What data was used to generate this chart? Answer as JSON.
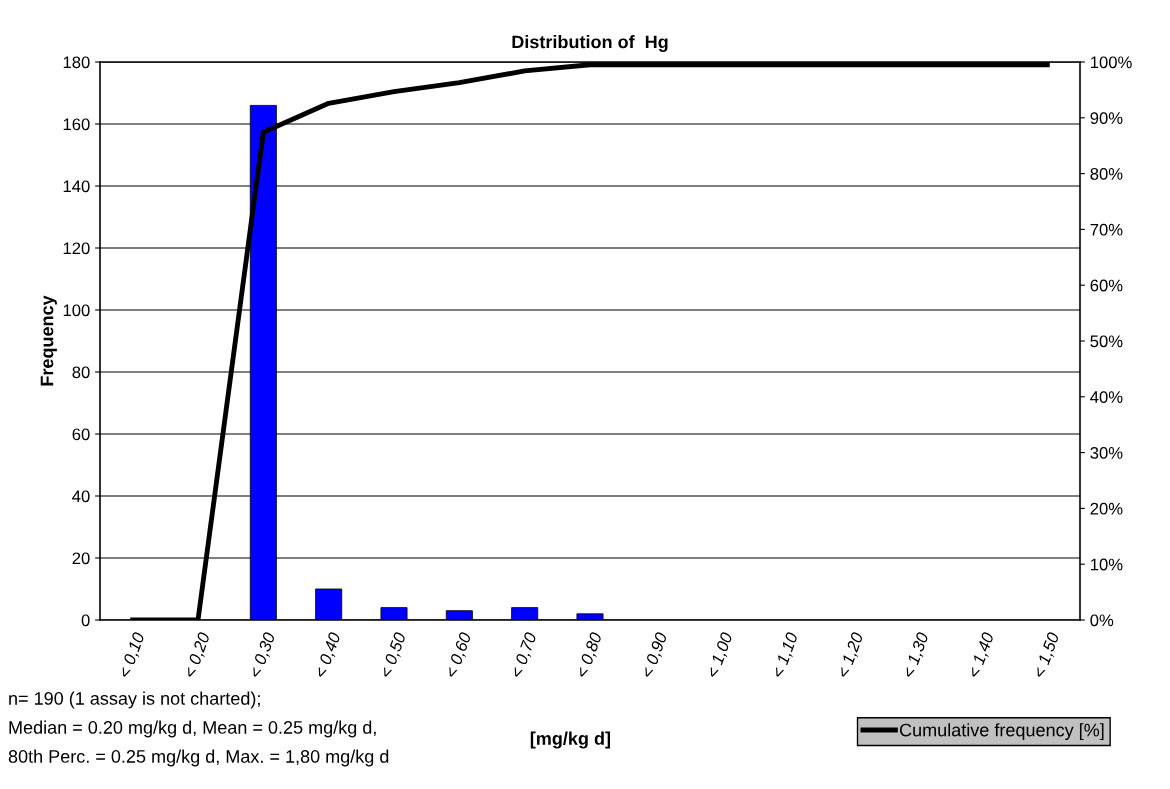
{
  "chart_data": {
    "type": "bar",
    "title": "Distribution of  Hg",
    "xlabel": "[mg/kg d]",
    "ylabel": "Frequency",
    "categories": [
      "< 0,10",
      "< 0,20",
      "< 0,30",
      "< 0,40",
      "< 0,50",
      "< 0,60",
      "< 0,70",
      "< 0,80",
      "< 0,90",
      "< 1,00",
      "< 1,10",
      "< 1,20",
      "< 1,30",
      "< 1,40",
      "< 1,50"
    ],
    "series": [
      {
        "color": "#0000ff",
        "values": [
          0,
          0,
          166,
          10,
          4,
          3,
          4,
          2,
          0,
          0,
          0,
          0,
          0,
          0,
          0
        ]
      },
      {
        "type": "line",
        "name": "Cumulative frequency [%]",
        "color": "#000000",
        "axis": "y2",
        "values": [
          0,
          0,
          87.4,
          92.6,
          94.7,
          96.3,
          98.4,
          99.5,
          99.5,
          99.5,
          99.5,
          99.5,
          99.5,
          99.5,
          99.5
        ]
      }
    ],
    "ylim": [
      0,
      180
    ],
    "yticks": [
      0,
      20,
      40,
      60,
      80,
      100,
      120,
      140,
      160,
      180
    ],
    "y2lim": [
      0,
      100
    ],
    "y2ticks": [
      {
        "value": 0,
        "label": "0%"
      },
      {
        "value": 10,
        "label": "10%"
      },
      {
        "value": 20,
        "label": "20%"
      },
      {
        "value": 30,
        "label": "30%"
      },
      {
        "value": 40,
        "label": "40%"
      },
      {
        "value": 50,
        "label": "50%"
      },
      {
        "value": 60,
        "label": "60%"
      },
      {
        "value": 70,
        "label": "70%"
      },
      {
        "value": 80,
        "label": "80%"
      },
      {
        "value": 90,
        "label": "90%"
      },
      {
        "value": 100,
        "label": "100%"
      }
    ],
    "grid": "y",
    "legend": "bottom right",
    "marker": "none",
    "line_style": "solid",
    "annotations": [
      "n= 190 (1 assay is not charted);",
      "Median = 0.20 mg/kg d, Mean = 0.25 mg/kg d,",
      "80th Perc. = 0.25 mg/kg d, Max. = 1,80 mg/kg d"
    ]
  }
}
